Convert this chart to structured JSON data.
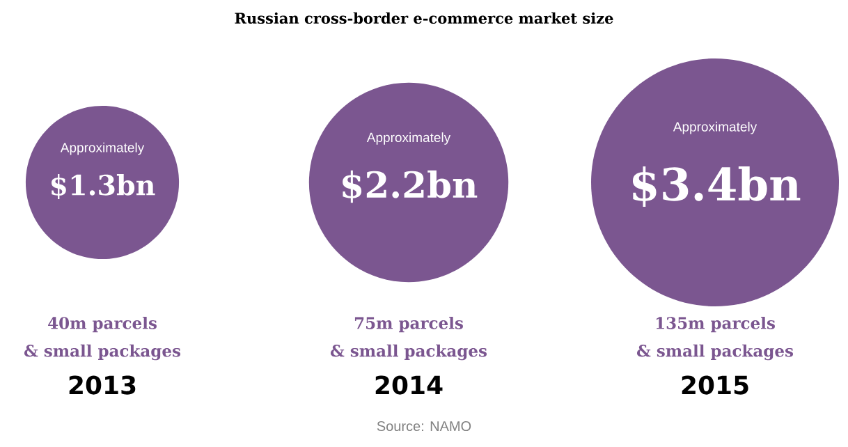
{
  "chart_data": {
    "type": "other",
    "title": "Russian cross-border e-commerce market size",
    "categories": [
      "2013",
      "2014",
      "2015"
    ],
    "values": [
      1.3,
      2.2,
      3.4
    ],
    "value_labels": [
      "$1.3bn",
      "$2.2bn",
      "$3.4bn"
    ],
    "color": "#7b5690",
    "annotations": [
      "Approximately",
      "40m parcels",
      "& small packages",
      "Approximately",
      "75m parcels",
      "& small packages",
      "Approximately",
      "135m parcels",
      "& small packages",
      "Source: NAMO"
    ]
  }
}
